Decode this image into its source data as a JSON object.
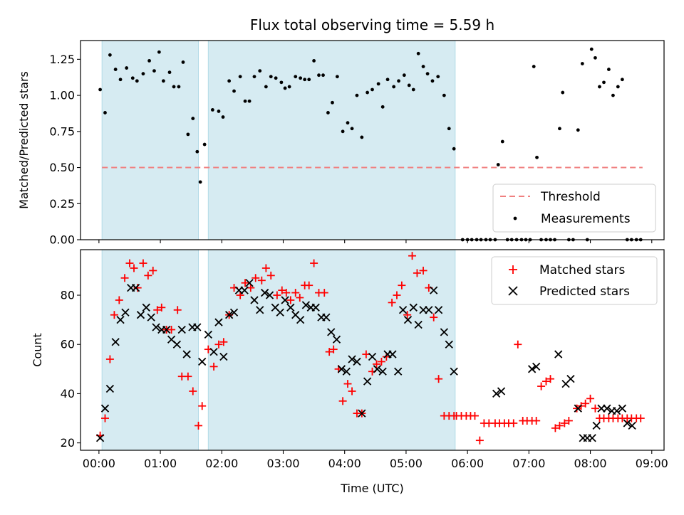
{
  "chart_data": [
    {
      "type": "scatter",
      "title": "Flux total observing time = 5.59 h",
      "xlabel": "",
      "ylabel": "Matched/Predicted stars",
      "x_unit": "hours UTC",
      "xlim": [
        -0.3,
        9.2
      ],
      "ylim": [
        0,
        1.38
      ],
      "yticks": [
        0.0,
        0.25,
        0.5,
        0.75,
        1.0,
        1.25
      ],
      "ytick_labels": [
        "0.00",
        "0.25",
        "0.50",
        "0.75",
        "1.00",
        "1.25"
      ],
      "shaded_spans": [
        [
          0.05,
          1.62
        ],
        [
          1.78,
          5.8
        ]
      ],
      "threshold": {
        "name": "Threshold",
        "value": 0.5,
        "x_range": [
          0.05,
          8.85
        ],
        "color": "#f08080"
      },
      "legend": [
        "Threshold",
        "Measurements"
      ],
      "legend_position": "lower-right",
      "series": [
        {
          "name": "Measurements",
          "color": "#000000",
          "x": [
            0.02,
            0.1,
            0.18,
            0.27,
            0.35,
            0.45,
            0.55,
            0.62,
            0.72,
            0.82,
            0.9,
            0.98,
            1.05,
            1.15,
            1.22,
            1.3,
            1.37,
            1.45,
            1.53,
            1.6,
            1.65,
            1.72,
            1.85,
            1.95,
            2.02,
            2.12,
            2.2,
            2.3,
            2.38,
            2.45,
            2.53,
            2.62,
            2.72,
            2.8,
            2.88,
            2.97,
            3.03,
            3.1,
            3.2,
            3.28,
            3.35,
            3.42,
            3.5,
            3.58,
            3.65,
            3.73,
            3.8,
            3.88,
            3.97,
            4.05,
            4.12,
            4.2,
            4.28,
            4.37,
            4.45,
            4.55,
            4.62,
            4.7,
            4.8,
            4.88,
            4.97,
            5.05,
            5.12,
            5.2,
            5.28,
            5.35,
            5.43,
            5.52,
            5.62,
            5.7,
            5.78,
            5.92,
            6.0,
            6.07,
            6.15,
            6.22,
            6.3,
            6.37,
            6.45,
            6.5,
            6.57,
            6.65,
            6.72,
            6.8,
            6.88,
            6.95,
            7.02,
            7.08,
            7.13,
            7.2,
            7.28,
            7.35,
            7.42,
            7.5,
            7.55,
            7.65,
            7.72,
            7.8,
            7.87,
            7.95,
            8.02,
            8.08,
            8.15,
            8.22,
            8.3,
            8.37,
            8.45,
            8.52,
            8.6,
            8.67,
            8.75,
            8.82
          ],
          "y": [
            1.04,
            0.88,
            1.28,
            1.18,
            1.11,
            1.19,
            1.12,
            1.1,
            1.15,
            1.24,
            1.17,
            1.3,
            1.1,
            1.16,
            1.06,
            1.06,
            1.23,
            0.73,
            0.84,
            0.61,
            0.4,
            0.66,
            0.9,
            0.89,
            0.85,
            1.1,
            1.03,
            1.13,
            0.96,
            0.96,
            1.13,
            1.17,
            1.06,
            1.13,
            1.12,
            1.09,
            1.05,
            1.06,
            1.13,
            1.12,
            1.11,
            1.11,
            1.24,
            1.14,
            1.14,
            0.88,
            0.95,
            1.13,
            0.75,
            0.81,
            0.77,
            1.0,
            0.71,
            1.02,
            1.04,
            1.08,
            0.92,
            1.11,
            1.06,
            1.1,
            1.14,
            1.07,
            1.04,
            1.29,
            1.2,
            1.15,
            1.1,
            1.13,
            1.0,
            0.77,
            0.63,
            0,
            0,
            0,
            0,
            0,
            0,
            0,
            0,
            0.52,
            0.68,
            0,
            0,
            0,
            0,
            0,
            0,
            1.2,
            0.57,
            0,
            0,
            0,
            0,
            0.77,
            1.02,
            0,
            0,
            0.76,
            1.22,
            0,
            1.32,
            1.26,
            1.06,
            1.09,
            1.18,
            1.0,
            1.06,
            1.11,
            0,
            0,
            0,
            0
          ]
        }
      ]
    },
    {
      "type": "scatter",
      "title": "",
      "xlabel": "Time (UTC)",
      "ylabel": "Count",
      "x_unit": "hours UTC",
      "xlim": [
        -0.3,
        9.2
      ],
      "ylim": [
        17,
        98.5
      ],
      "yticks": [
        20,
        40,
        60,
        80
      ],
      "ytick_labels": [
        "20",
        "40",
        "60",
        "80"
      ],
      "xticks": [
        0,
        1,
        2,
        3,
        4,
        5,
        6,
        7,
        8,
        9
      ],
      "xtick_labels": [
        "00:00",
        "01:00",
        "02:00",
        "03:00",
        "04:00",
        "05:00",
        "06:00",
        "07:00",
        "08:00",
        "09:00"
      ],
      "shaded_spans": [
        [
          0.05,
          1.62
        ],
        [
          1.78,
          5.8
        ]
      ],
      "legend": [
        "Matched stars",
        "Predicted stars"
      ],
      "legend_position": "top-right",
      "series": [
        {
          "name": "Matched stars",
          "marker": "+",
          "color": "#ff0000",
          "x": [
            0.02,
            0.1,
            0.18,
            0.25,
            0.33,
            0.42,
            0.5,
            0.57,
            0.63,
            0.72,
            0.8,
            0.88,
            0.95,
            1.02,
            1.1,
            1.18,
            1.28,
            1.35,
            1.45,
            1.53,
            1.62,
            1.68,
            1.78,
            1.87,
            1.95,
            2.03,
            2.12,
            2.2,
            2.3,
            2.38,
            2.47,
            2.55,
            2.65,
            2.72,
            2.8,
            2.9,
            2.98,
            3.05,
            3.12,
            3.2,
            3.27,
            3.35,
            3.42,
            3.5,
            3.58,
            3.67,
            3.75,
            3.82,
            3.9,
            3.97,
            4.05,
            4.12,
            4.2,
            4.28,
            4.35,
            4.45,
            4.52,
            4.6,
            4.68,
            4.77,
            4.85,
            4.93,
            5.02,
            5.1,
            5.18,
            5.28,
            5.37,
            5.45,
            5.53,
            5.62,
            5.7,
            5.78,
            5.82,
            5.9,
            5.98,
            6.05,
            6.12,
            6.2,
            6.27,
            6.35,
            6.45,
            6.52,
            6.6,
            6.67,
            6.75,
            6.82,
            6.9,
            6.97,
            7.05,
            7.12,
            7.2,
            7.28,
            7.35,
            7.43,
            7.5,
            7.58,
            7.65,
            7.78,
            7.85,
            7.92,
            8.0,
            8.08,
            8.15,
            8.22,
            8.3,
            8.37,
            8.45,
            8.52,
            8.6,
            8.67,
            8.75,
            8.82
          ],
          "y": [
            23,
            30,
            54,
            72,
            78,
            87,
            93,
            91,
            83,
            93,
            88,
            90,
            74,
            75,
            66,
            66,
            74,
            47,
            47,
            41,
            27,
            35,
            58,
            51,
            60,
            61,
            72,
            83,
            80,
            85,
            83,
            87,
            86,
            91,
            88,
            80,
            82,
            81,
            78,
            81,
            79,
            84,
            84,
            93,
            81,
            81,
            57,
            58,
            50,
            37,
            44,
            41,
            32,
            32,
            56,
            49,
            52,
            53,
            55,
            77,
            80,
            84,
            72,
            96,
            89,
            90,
            83,
            71,
            46,
            31,
            31,
            31,
            31,
            31,
            31,
            31,
            31,
            21,
            28,
            28,
            28,
            28,
            28,
            28,
            28,
            60,
            29,
            29,
            29,
            29,
            43,
            45,
            46,
            26,
            27,
            28,
            29,
            34,
            35,
            36,
            38,
            34,
            30,
            30,
            30,
            30,
            30,
            30,
            30,
            30,
            30,
            30
          ],
          "_note": ""
        },
        {
          "name": "Predicted stars",
          "marker": "x",
          "color": "#000000",
          "x": [
            0.02,
            0.1,
            0.18,
            0.27,
            0.35,
            0.43,
            0.52,
            0.6,
            0.68,
            0.77,
            0.85,
            0.93,
            1.02,
            1.1,
            1.18,
            1.27,
            1.35,
            1.43,
            1.52,
            1.6,
            1.68,
            1.78,
            1.87,
            1.95,
            2.03,
            2.12,
            2.2,
            2.28,
            2.37,
            2.45,
            2.53,
            2.62,
            2.7,
            2.78,
            2.87,
            2.95,
            3.03,
            3.12,
            3.2,
            3.28,
            3.37,
            3.45,
            3.53,
            3.62,
            3.7,
            3.78,
            3.87,
            3.95,
            4.03,
            4.12,
            4.2,
            4.28,
            4.37,
            4.45,
            4.53,
            4.62,
            4.7,
            4.78,
            4.87,
            4.95,
            5.03,
            5.12,
            5.2,
            5.28,
            5.37,
            5.45,
            5.53,
            5.62,
            5.7,
            5.78,
            6.47,
            6.55,
            7.05,
            7.12,
            7.48,
            7.6,
            7.68,
            7.8,
            7.88,
            7.95,
            8.03,
            8.1,
            8.18,
            8.27,
            8.35,
            8.43,
            8.52,
            8.6,
            8.68
          ],
          "y": [
            22,
            34,
            42,
            61,
            70,
            73,
            83,
            83,
            72,
            75,
            71,
            67,
            66,
            66,
            62,
            60,
            66,
            56,
            67,
            67,
            53,
            64,
            57,
            69,
            55,
            72,
            73,
            82,
            82,
            85,
            78,
            74,
            81,
            80,
            75,
            73,
            78,
            75,
            72,
            70,
            76,
            75,
            75,
            71,
            71,
            65,
            62,
            50,
            49,
            54,
            53,
            32,
            45,
            55,
            50,
            49,
            56,
            56,
            49,
            74,
            70,
            75,
            68,
            74,
            74,
            82,
            74,
            65,
            60,
            49,
            40,
            41,
            50,
            51,
            56,
            44,
            46,
            34,
            22,
            22,
            22,
            27,
            34,
            34,
            33,
            33,
            34,
            28,
            27
          ]
        }
      ]
    }
  ]
}
